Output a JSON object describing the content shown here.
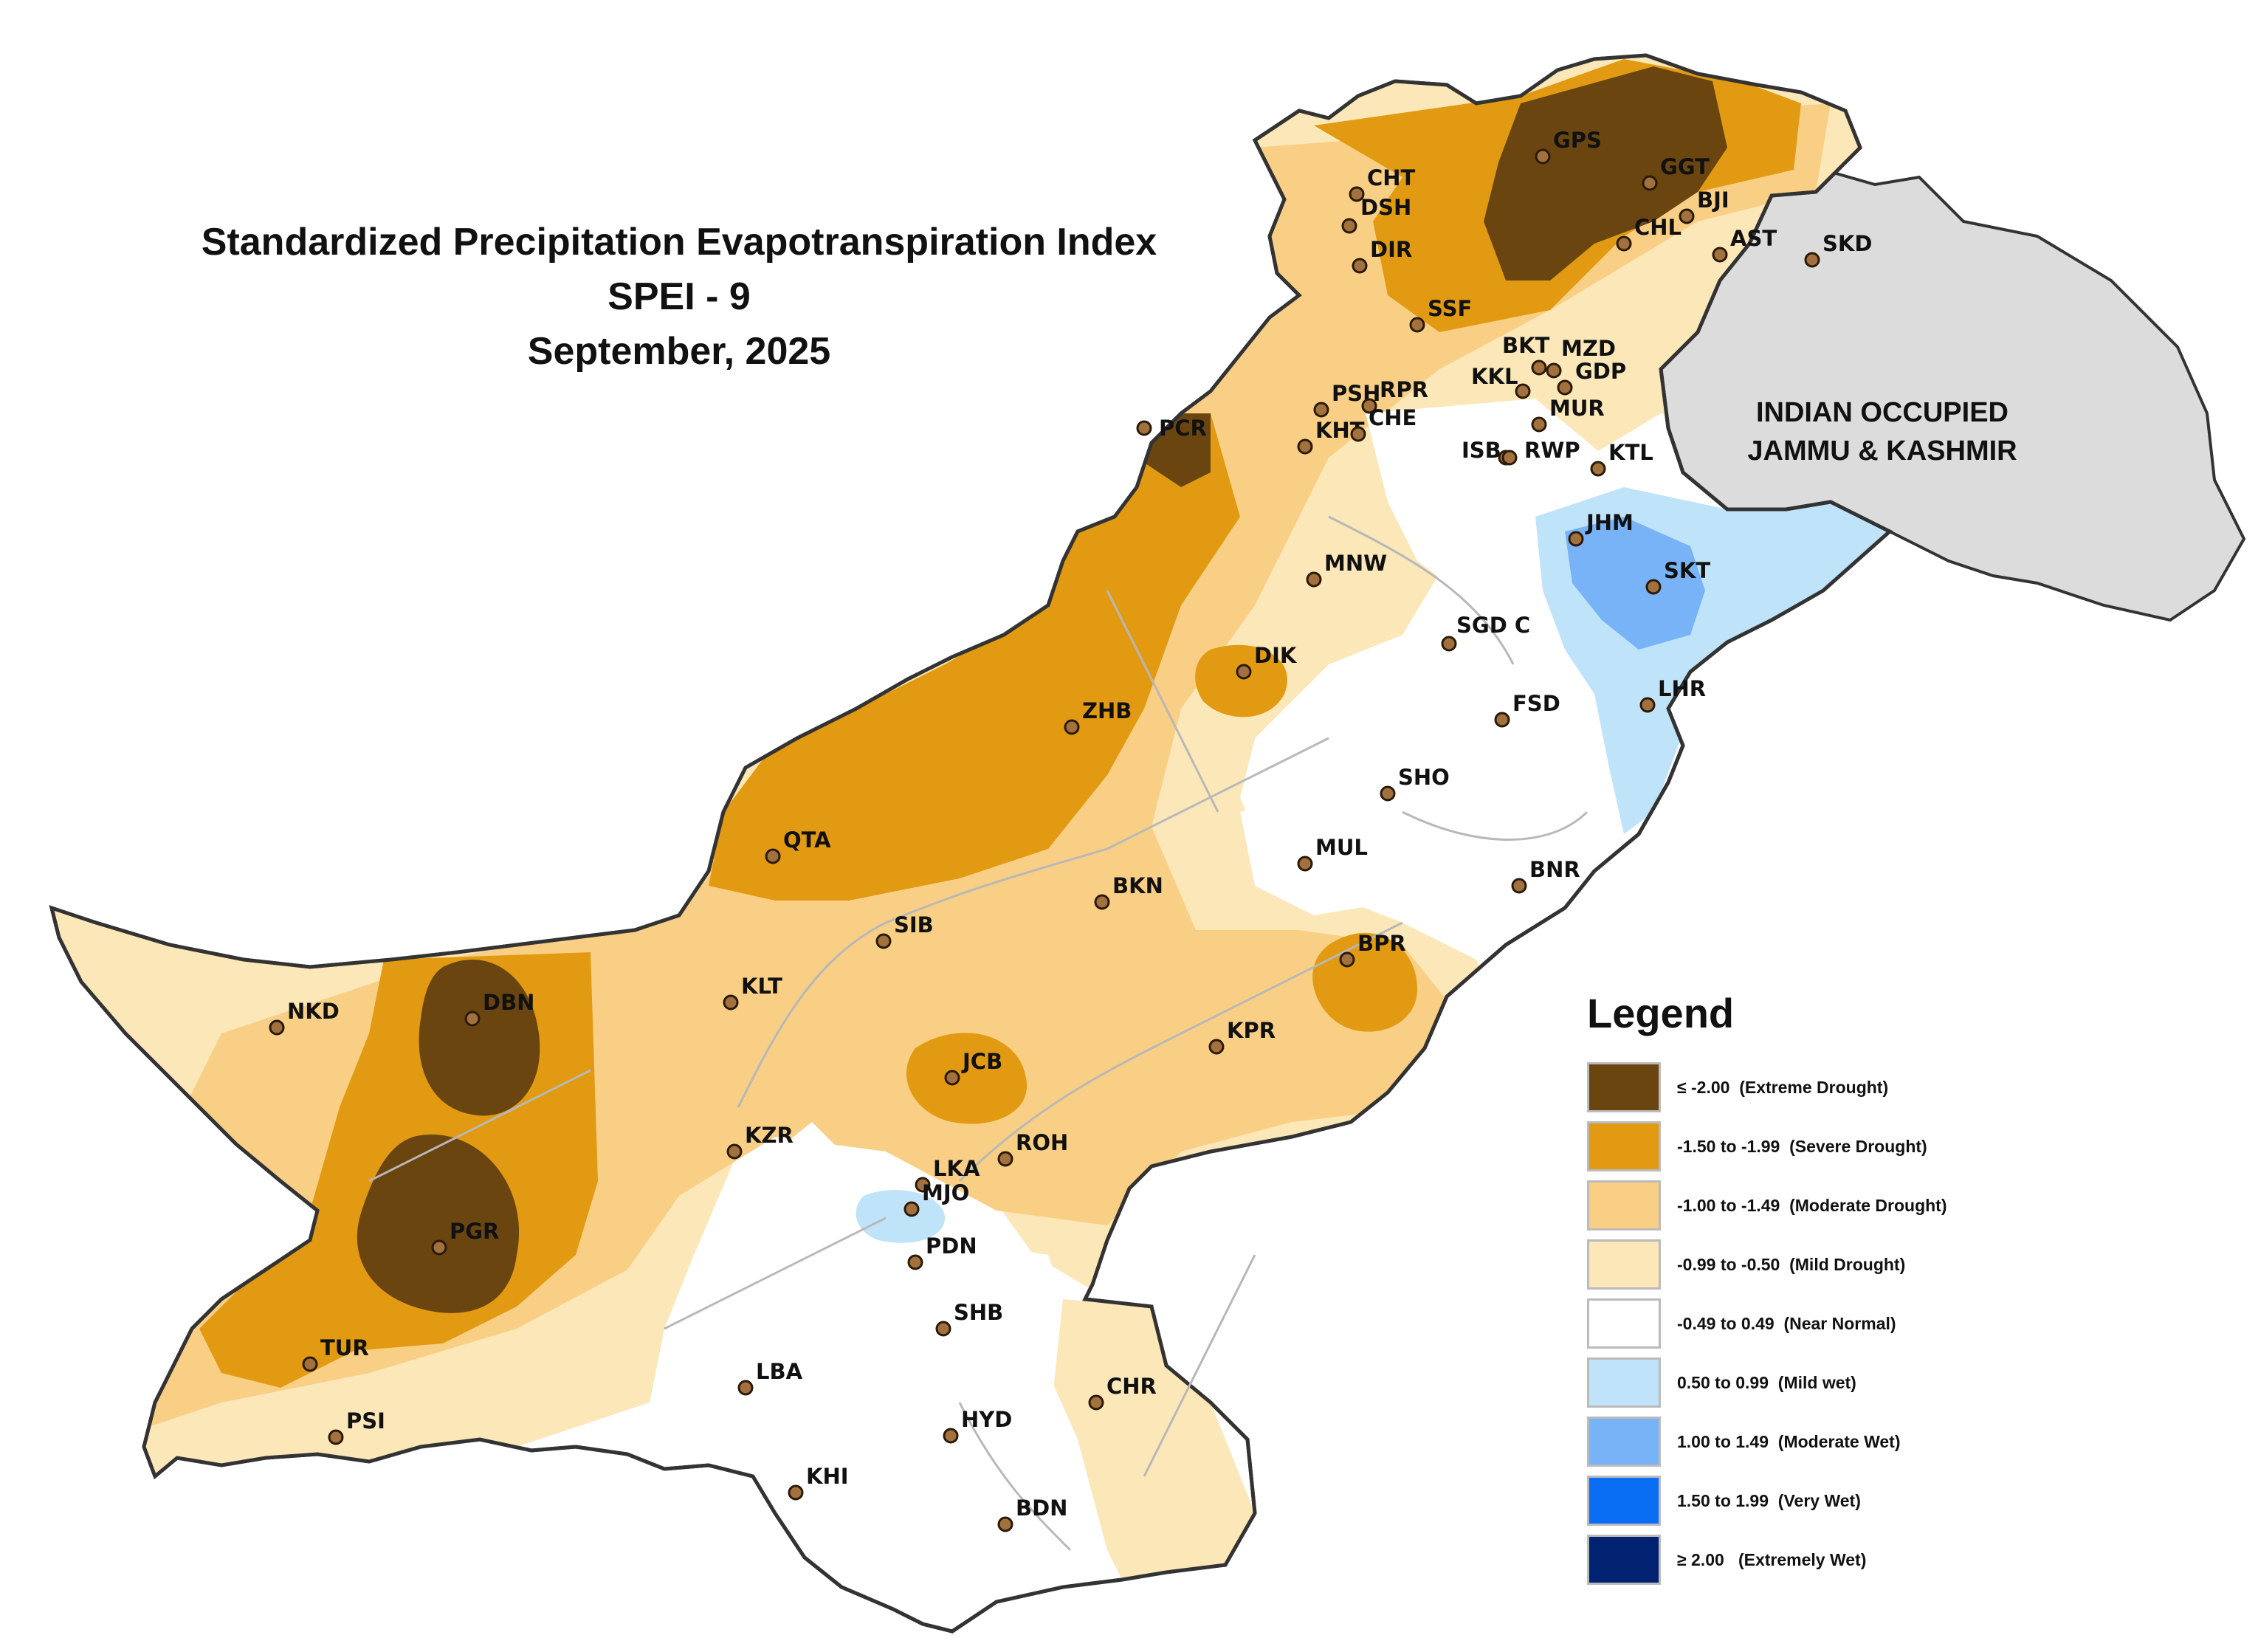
{
  "title": {
    "line1": "Standardized Precipitation Evapotranspiration Index",
    "line2": "SPEI - 9",
    "line3": "September, 2025"
  },
  "region_label": {
    "line1": "INDIAN OCCUPIED",
    "line2": "JAMMU & KASHMIR"
  },
  "legend": {
    "title": "Legend",
    "items": [
      {
        "label": "≤ -2.00  (Extreme Drought)",
        "color": "#6b4510"
      },
      {
        "label": "-1.50 to -1.99  (Severe Drought)",
        "color": "#e29a12"
      },
      {
        "label": "-1.00 to -1.49  (Moderate Drought)",
        "color": "#f9cf85"
      },
      {
        "label": "-0.99 to -0.50  (Mild Drought)",
        "color": "#fbe7b8"
      },
      {
        "label": "-0.49 to 0.49  (Near Normal)",
        "color": "#ffffff"
      },
      {
        "label": "0.50 to 0.99  (Mild wet)",
        "color": "#bfe3f9"
      },
      {
        "label": "1.00 to 1.49  (Moderate Wet)",
        "color": "#78b3f7"
      },
      {
        "label": "1.50 to 1.99  (Very Wet)",
        "color": "#0a6ef5"
      },
      {
        "label": "≥ 2.00   (Extremely Wet)",
        "color": "#002270"
      }
    ]
  },
  "stations": [
    "GPS",
    "CHT",
    "DSH",
    "DIR",
    "GGT",
    "BJI",
    "CHL",
    "AST",
    "SKD",
    "SSF",
    "BKT",
    "MZD",
    "KKL",
    "GDP",
    "PSH",
    "RPR",
    "MUR",
    "PCR",
    "KHT",
    "CHE",
    "ISB",
    "RWP",
    "KTL",
    "JHM",
    "SKT",
    "MNW",
    "SGD C",
    "DIK",
    "LHR",
    "FSD",
    "ZHB",
    "SHO",
    "QTA",
    "MUL",
    "BKN",
    "BNR",
    "SIB",
    "BPR",
    "NKD",
    "DBN",
    "KLT",
    "KPR",
    "JCB",
    "KZR",
    "ROH",
    "LKA",
    "MJO",
    "PGR",
    "PDN",
    "SHB",
    "TUR",
    "LBA",
    "CHR",
    "PSI",
    "HYD",
    "KHI",
    "BDN"
  ]
}
